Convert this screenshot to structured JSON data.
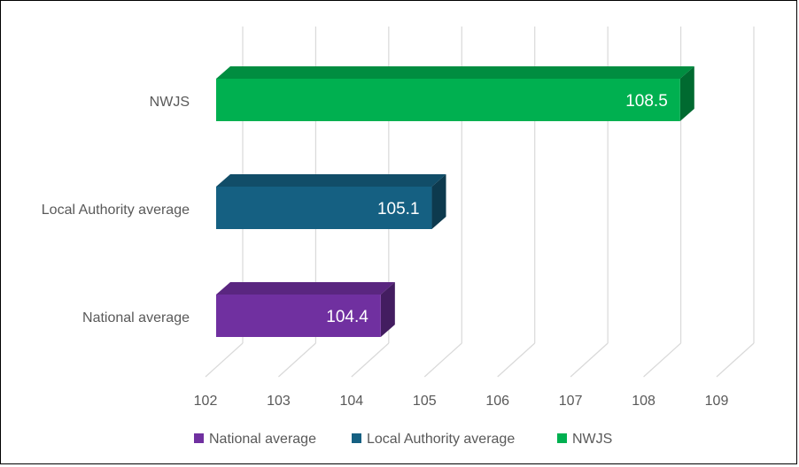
{
  "chart_data": {
    "type": "bar",
    "orientation": "horizontal",
    "style": "3d",
    "categories": [
      "National average",
      "Local Authority average",
      "NWJS"
    ],
    "values": [
      104.4,
      105.1,
      108.5
    ],
    "colors": [
      "#7030a0",
      "#156082",
      "#00b050"
    ],
    "xlim": [
      102,
      109
    ],
    "xticks": [
      "102",
      "103",
      "104",
      "105",
      "106",
      "107",
      "108",
      "109"
    ],
    "grid": true,
    "legend": {
      "position": "bottom",
      "items": [
        "National average",
        "Local Authority average",
        "NWJS"
      ]
    }
  }
}
